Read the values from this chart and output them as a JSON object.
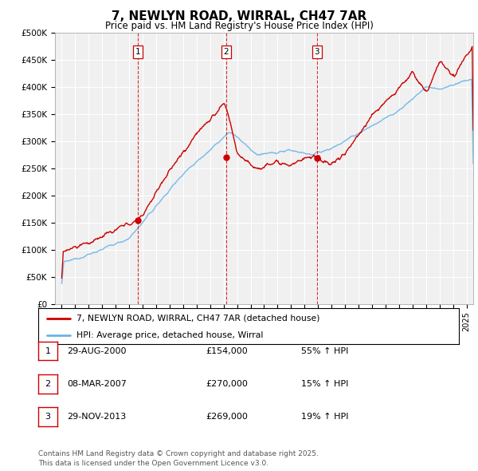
{
  "title": "7, NEWLYN ROAD, WIRRAL, CH47 7AR",
  "subtitle": "Price paid vs. HM Land Registry's House Price Index (HPI)",
  "ylabel_ticks": [
    "£0",
    "£50K",
    "£100K",
    "£150K",
    "£200K",
    "£250K",
    "£300K",
    "£350K",
    "£400K",
    "£450K",
    "£500K"
  ],
  "ytick_values": [
    0,
    50000,
    100000,
    150000,
    200000,
    250000,
    300000,
    350000,
    400000,
    450000,
    500000
  ],
  "ylim": [
    0,
    500000
  ],
  "xlim_start": 1994.5,
  "xlim_end": 2025.5,
  "hpi_color": "#6ab4e8",
  "price_color": "#cc0000",
  "transactions": [
    {
      "num": 1,
      "date_num": 2000.66,
      "price": 154000,
      "date_str": "29-AUG-2000",
      "pct": "55%",
      "dir": "↑"
    },
    {
      "num": 2,
      "date_num": 2007.18,
      "price": 270000,
      "date_str": "08-MAR-2007",
      "pct": "15%",
      "dir": "↑"
    },
    {
      "num": 3,
      "date_num": 2013.91,
      "price": 269000,
      "date_str": "29-NOV-2013",
      "pct": "19%",
      "dir": "↑"
    }
  ],
  "legend_line1": "7, NEWLYN ROAD, WIRRAL, CH47 7AR (detached house)",
  "legend_line2": "HPI: Average price, detached house, Wirral",
  "footnote": "Contains HM Land Registry data © Crown copyright and database right 2025.\nThis data is licensed under the Open Government Licence v3.0.",
  "background_color": "#f0f0f0",
  "grid_color": "#ffffff"
}
